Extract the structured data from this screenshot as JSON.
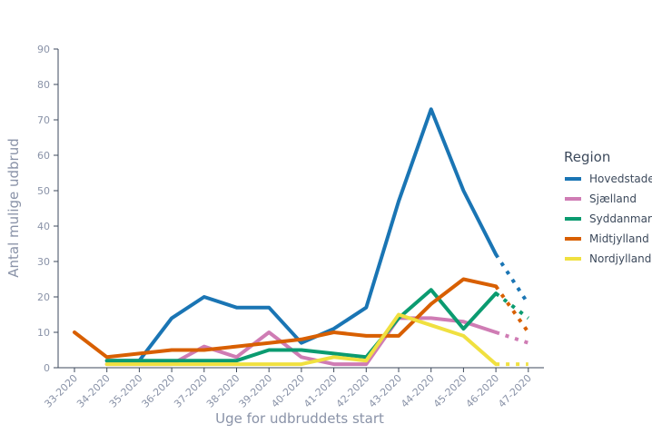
{
  "chart_data": {
    "type": "line",
    "xlabel": "Uge for udbruddets start",
    "ylabel": "Antal mulige udbrud",
    "ylim": [
      0,
      90
    ],
    "yticks": [
      0,
      10,
      20,
      30,
      40,
      50,
      60,
      70,
      80,
      90
    ],
    "categories": [
      "33-2020",
      "34-2020",
      "35-2020",
      "36-2020",
      "37-2020",
      "38-2020",
      "39-2020",
      "40-2020",
      "41-2020",
      "42-2020",
      "43-2020",
      "44-2020",
      "45-2020",
      "46-2020",
      "47-2020"
    ],
    "grid": false,
    "legend": {
      "title": "Region",
      "placement": "right"
    },
    "incomplete_from": "46-2020",
    "series": [
      {
        "name": "Hovedstaden",
        "color": "#1a75b4",
        "values": [
          null,
          2,
          2,
          14,
          20,
          17,
          17,
          7,
          11,
          17,
          47,
          73,
          50,
          32,
          18
        ]
      },
      {
        "name": "Sjælland",
        "color": "#cf7cb4",
        "values": [
          null,
          1,
          1,
          1,
          6,
          3,
          10,
          3,
          1,
          1,
          14,
          14,
          13,
          10,
          7
        ]
      },
      {
        "name": "Syddanmark",
        "color": "#0b9b70",
        "values": [
          null,
          2,
          2,
          2,
          2,
          2,
          5,
          5,
          4,
          3,
          14,
          22,
          11,
          21,
          14
        ]
      },
      {
        "name": "Midtjylland",
        "color": "#d85f00",
        "values": [
          10,
          3,
          4,
          5,
          5,
          6,
          7,
          8,
          10,
          9,
          9,
          18,
          25,
          23,
          10
        ]
      },
      {
        "name": "Nordjylland",
        "color": "#f0e040",
        "values": [
          null,
          1,
          1,
          1,
          1,
          1,
          1,
          1,
          3,
          2,
          15,
          12,
          9,
          1,
          1
        ]
      }
    ]
  }
}
